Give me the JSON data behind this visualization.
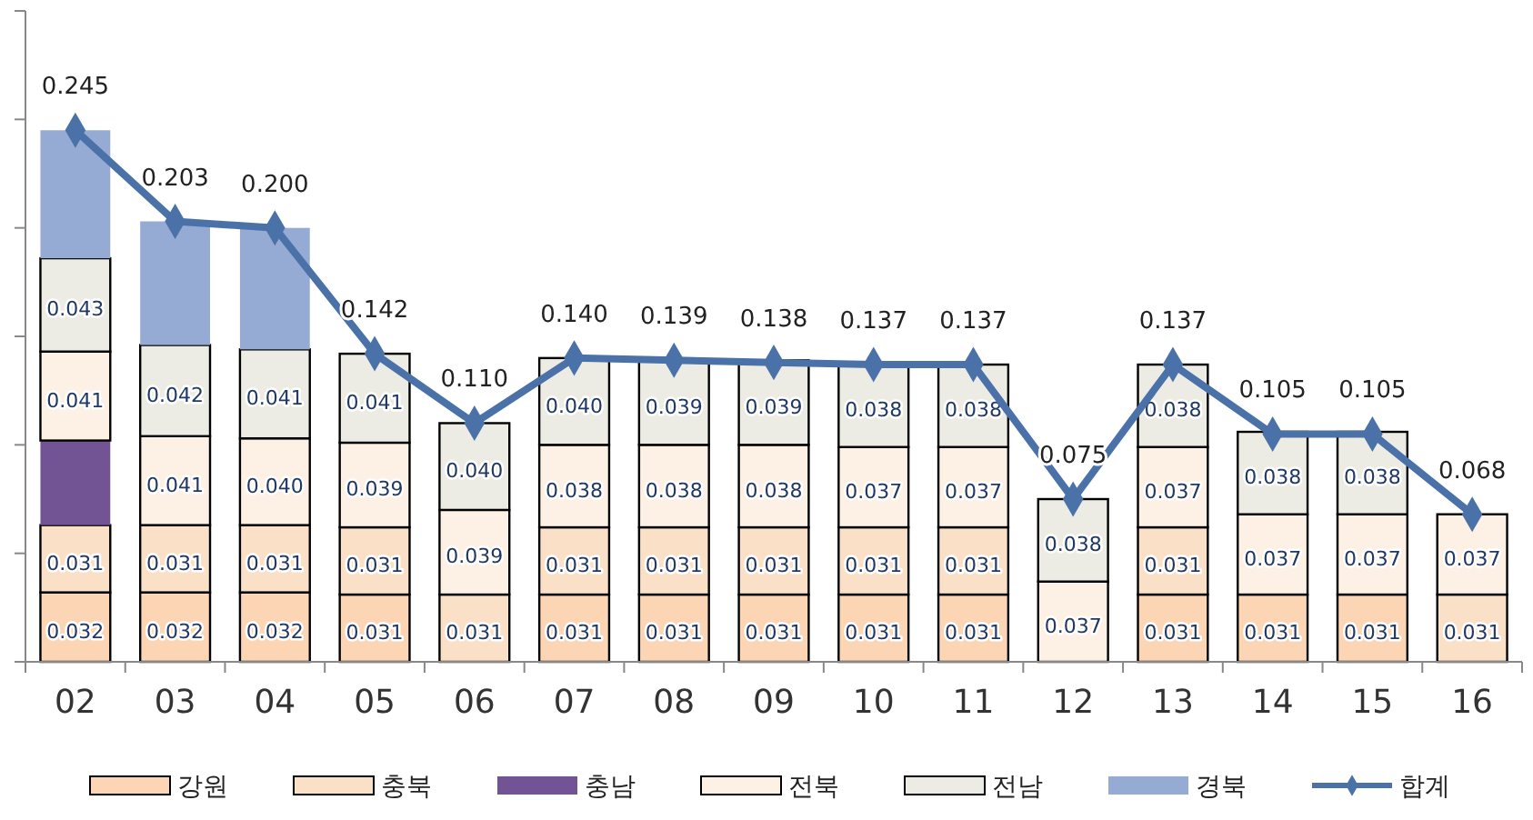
{
  "chart_data": {
    "type": "bar",
    "stacked": true,
    "categories": [
      "02",
      "03",
      "04",
      "05",
      "06",
      "07",
      "08",
      "09",
      "10",
      "11",
      "12",
      "13",
      "14",
      "15",
      "16"
    ],
    "ylim": [
      0,
      0.3
    ],
    "yticks": [
      {
        "value": 0,
        "label": null
      },
      {
        "value": 0.05,
        "label": null
      },
      {
        "value": 0.1,
        "label": null
      },
      {
        "value": 0.15,
        "label": null
      },
      {
        "value": 0.2,
        "label": null
      },
      {
        "value": 0.25,
        "label": null
      },
      {
        "value": 0.3,
        "label": null
      }
    ],
    "tick_labels": "x",
    "grid": false,
    "legend": "bottom",
    "series": [
      {
        "name": "강원",
        "color": "#fcd5b4",
        "values": [
          0.032,
          0.032,
          0.032,
          0.031,
          null,
          0.031,
          0.031,
          0.031,
          0.031,
          0.031,
          null,
          0.031,
          0.031,
          0.031,
          null
        ],
        "value_labels": [
          "0.032",
          "0.032",
          "0.032",
          "0.031",
          null,
          "0.031",
          "0.031",
          "0.031",
          "0.031",
          "0.031",
          null,
          "0.031",
          "0.031",
          "0.031",
          null
        ]
      },
      {
        "name": "충북",
        "color": "#fbe0c8",
        "values": [
          0.031,
          0.031,
          0.031,
          0.031,
          0.031,
          0.031,
          0.031,
          0.031,
          0.031,
          0.031,
          null,
          0.031,
          null,
          null,
          0.031
        ],
        "value_labels": [
          "0.031",
          "0.031",
          "0.031",
          "0.031",
          "0.031",
          "0.031",
          "0.031",
          "0.031",
          "0.031",
          "0.031",
          null,
          "0.031",
          null,
          null,
          "0.031"
        ]
      },
      {
        "name": "충남",
        "color": "#725494",
        "values": [
          0.039,
          null,
          null,
          null,
          null,
          null,
          null,
          null,
          null,
          null,
          null,
          null,
          null,
          null,
          null
        ],
        "value_labels": [
          null,
          null,
          null,
          null,
          null,
          null,
          null,
          null,
          null,
          null,
          null,
          null,
          null,
          null,
          null
        ]
      },
      {
        "name": "전북",
        "color": "#fdf0e4",
        "values": [
          0.041,
          0.041,
          0.04,
          0.039,
          0.039,
          0.038,
          0.038,
          0.038,
          0.037,
          0.037,
          0.037,
          0.037,
          0.037,
          0.037,
          0.037
        ],
        "value_labels": [
          "0.041",
          "0.041",
          "0.040",
          "0.039",
          "0.039",
          "0.038",
          "0.038",
          "0.038",
          "0.037",
          "0.037",
          "0.037",
          "0.037",
          "0.037",
          "0.037",
          "0.037"
        ]
      },
      {
        "name": "전남",
        "color": "#ecece4",
        "values": [
          0.043,
          0.042,
          0.041,
          0.041,
          0.04,
          0.04,
          0.039,
          0.039,
          0.038,
          0.038,
          0.038,
          0.038,
          0.038,
          0.038,
          null
        ],
        "value_labels": [
          "0.043",
          "0.042",
          "0.041",
          "0.041",
          "0.040",
          "0.040",
          "0.039",
          "0.039",
          "0.038",
          "0.038",
          "0.038",
          "0.038",
          "0.038",
          "0.038",
          null
        ]
      },
      {
        "name": "경북",
        "color": "#95abd4",
        "values": [
          0.059,
          0.057,
          0.056,
          null,
          null,
          null,
          null,
          null,
          null,
          null,
          null,
          null,
          null,
          null,
          null
        ],
        "value_labels": [
          null,
          null,
          null,
          null,
          null,
          null,
          null,
          null,
          null,
          null,
          null,
          null,
          null,
          null,
          null
        ]
      },
      {
        "name": "합계",
        "type": "line",
        "color": "#4a72a8",
        "marker": "diamond",
        "values": [
          0.245,
          0.203,
          0.2,
          0.142,
          0.11,
          0.14,
          0.139,
          0.138,
          0.137,
          0.137,
          0.075,
          0.137,
          0.105,
          0.105,
          0.068
        ],
        "value_labels": [
          "0.245",
          "0.203",
          "0.200",
          "0.142",
          "0.110",
          "0.140",
          "0.139",
          "0.138",
          "0.137",
          "0.137",
          "0.075",
          "0.137",
          "0.105",
          "0.105",
          "0.068"
        ]
      }
    ]
  }
}
